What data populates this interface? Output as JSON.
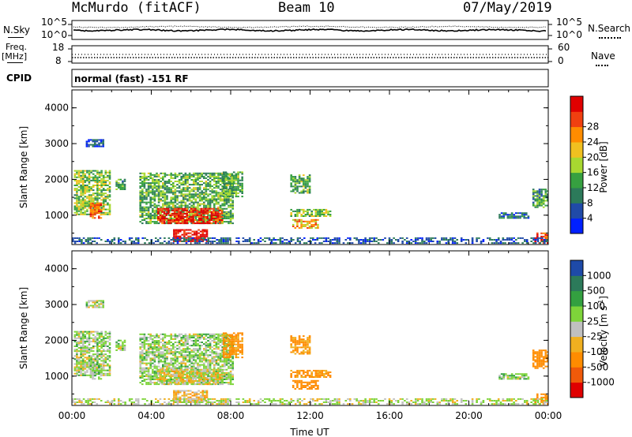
{
  "header": {
    "station": "McMurdo (fitACF)",
    "beam": "Beam 10",
    "date": "07/May/2019"
  },
  "status_panels": {
    "nsky_label": "N.Sky",
    "nsearch_label": "N.Search",
    "noise_ticks_left": [
      "10^5",
      "10^0"
    ],
    "noise_ticks_right": [
      "10^5",
      "10^0"
    ],
    "freq_label": "Freq.",
    "freq_unit": "[MHz]",
    "freq_ticks": [
      "18",
      "8"
    ],
    "nave_label": "Nave",
    "nave_ticks": [
      "60",
      "0"
    ],
    "cpid_label": "CPID",
    "cpid_text": "normal (fast) -151 RF"
  },
  "colors": {
    "power_scale": [
      "#0020ff",
      "#204aa8",
      "#2c7a5a",
      "#36a040",
      "#a8d830",
      "#f0c020",
      "#ff8c00",
      "#f04010",
      "#e00000"
    ],
    "velocity_scale": [
      "#e00000",
      "#f05a0a",
      "#ff8c00",
      "#f0b020",
      "#c0c0c0",
      "#7ed43a",
      "#33a040",
      "#2c7a5a",
      "#1e4aa8"
    ]
  },
  "chart_data": [
    {
      "type": "heatmap",
      "panel": "power",
      "ylabel": "Slant Range [km]",
      "ylim": [
        180,
        4500
      ],
      "yticks": [
        "1000",
        "2000",
        "3000",
        "4000"
      ],
      "xlim": [
        0,
        24
      ],
      "colorbar_label": "Power [dB]",
      "colorbar_ticks": [
        "4",
        "8",
        "12",
        "16",
        "20",
        "24",
        "28"
      ],
      "colorbar_range": [
        0,
        30
      ]
    },
    {
      "type": "heatmap",
      "panel": "velocity",
      "ylabel": "Slant Range [km]",
      "ylim": [
        180,
        4500
      ],
      "yticks": [
        "1000",
        "2000",
        "3000",
        "4000"
      ],
      "xlim": [
        0,
        24
      ],
      "xlabel": "Time UT",
      "xticks": [
        "00:00",
        "04:00",
        "08:00",
        "12:00",
        "16:00",
        "20:00",
        "00:00"
      ],
      "colorbar_label": "Velocity [m s",
      "colorbar_label_sup": "-1",
      "colorbar_label_end": "]",
      "colorbar_ticks": [
        "-1000",
        "-500",
        "-100",
        "-25",
        "25",
        "100",
        "500",
        "1000"
      ]
    }
  ]
}
